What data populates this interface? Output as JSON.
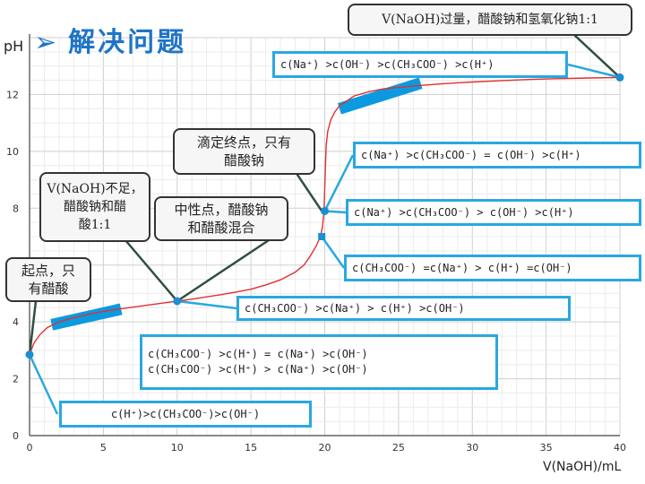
{
  "slide": {
    "title": "解决问题"
  },
  "colors": {
    "curve": "#e03030",
    "box_border": "#29a8e0",
    "band": "#0b9ae0",
    "point": "#1a8fd2",
    "title": "#1e74c6"
  },
  "chart_data": {
    "type": "line",
    "ylabel": "pH",
    "xlabel": "V(NaOH)/mL",
    "xlim": [
      0,
      40
    ],
    "ylim": [
      0,
      14
    ],
    "x_ticks": [
      "0",
      "5",
      "10",
      "15",
      "20",
      "25",
      "30",
      "35",
      "40"
    ],
    "y_ticks": [
      "0",
      "2",
      "4",
      "6",
      "8",
      "10",
      "12"
    ],
    "grid": true,
    "series": [
      {
        "x": [
          0,
          0.3,
          0.7,
          1.2,
          2,
          3,
          4,
          5,
          6,
          7,
          8,
          9,
          10,
          11,
          12,
          13,
          14,
          15,
          16,
          17,
          18,
          18.6,
          19,
          19.4,
          19.7,
          19.85,
          19.95,
          20,
          20.05,
          20.1,
          20.2,
          20.4,
          20.7,
          21,
          22,
          23,
          24,
          26,
          28,
          30,
          32,
          34,
          36,
          38,
          40
        ],
        "y": [
          2.85,
          3.25,
          3.55,
          3.8,
          4.0,
          4.15,
          4.27,
          4.37,
          4.45,
          4.52,
          4.59,
          4.66,
          4.73,
          4.8,
          4.88,
          4.96,
          5.05,
          5.15,
          5.3,
          5.48,
          5.75,
          6.0,
          6.3,
          6.65,
          7.0,
          7.35,
          7.9,
          8.7,
          9.5,
          10.2,
          10.7,
          11.1,
          11.4,
          11.6,
          11.95,
          12.1,
          12.2,
          12.3,
          12.38,
          12.44,
          12.49,
          12.53,
          12.56,
          12.58,
          12.6
        ]
      }
    ],
    "points": [
      {
        "x": 0,
        "y": 2.85
      },
      {
        "x": 10,
        "y": 4.73
      },
      {
        "x": 19.8,
        "y": 7.0
      },
      {
        "x": 20,
        "y": 7.9
      },
      {
        "x": 40,
        "y": 12.6
      }
    ],
    "bands": [
      {
        "x1": 1.5,
        "y1": 3.9,
        "x2": 6.2,
        "y2": 4.45
      },
      {
        "x1": 21,
        "y1": 11.5,
        "x2": 26.5,
        "y2": 12.4
      }
    ],
    "annotations": {
      "callouts": [
        {
          "lines": [
            "起点，只",
            "有醋酸"
          ]
        },
        {
          "lines": [
            "V(NaOH)不足，",
            "醋酸钠和醋",
            "酸1:1"
          ]
        },
        {
          "lines": [
            "中性点，醋酸钠",
            "和醋酸混合"
          ]
        },
        {
          "lines": [
            "滴定终点，只有",
            "醋酸钠"
          ]
        },
        {
          "lines": [
            "V(NaOH)过量，醋酸钠和氢氧化钠1:1"
          ]
        }
      ],
      "boxes": [
        {
          "lines": [
            "c(Na⁺) >c(OH⁻) >c(CH₃COO⁻)  >c(H⁺)"
          ]
        },
        {
          "lines": [
            "c(Na⁺) >c(CH₃COO⁻) = c(OH⁻) >c(H⁺)"
          ]
        },
        {
          "lines": [
            "c(Na⁺) >c(CH₃COO⁻) > c(OH⁻) >c(H⁺)"
          ]
        },
        {
          "lines": [
            "c(CH₃COO⁻) =c(Na⁺) > c(H⁺) =c(OH⁻)"
          ]
        },
        {
          "lines": [
            "c(CH₃COO⁻) >c(Na⁺) > c(H⁺) >c(OH⁻)"
          ]
        },
        {
          "lines": [
            "c(CH₃COO⁻) >c(H⁺) = c(Na⁺)  >c(OH⁻)",
            "c(CH₃COO⁻) >c(H⁺) > c(Na⁺)  >c(OH⁻)"
          ]
        },
        {
          "lines": [
            "c(H⁺)>c(CH₃COO⁻)>c(OH⁻)"
          ]
        }
      ]
    }
  }
}
